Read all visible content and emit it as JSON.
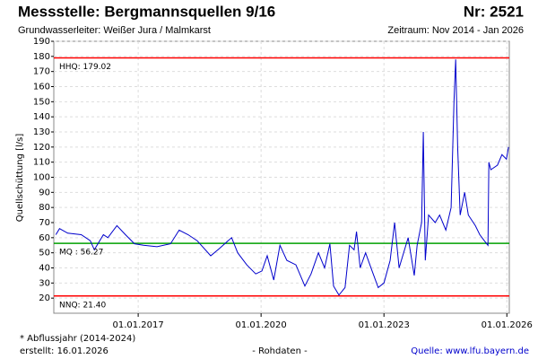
{
  "chart_data": {
    "type": "line",
    "title": "Messstelle: Bergmannsquellen 9/16",
    "number": "Nr: 2521",
    "subtitle": "Grundwasserleiter:  Weißer Jura / Malmkarst",
    "period": "Zeitraum: Nov 2014 - Jan 2026",
    "y_label": "Quellschüttung [l/s]",
    "footnote": "* Abflussjahr (2014-2024)",
    "created": "erstellt:  16.01.2026",
    "raw_note": "- Rohdaten -",
    "source": "Quelle:  www.lfu.bayern.de",
    "grid": true,
    "xlim": [
      2014.94,
      2026.06
    ],
    "ylim": [
      10,
      190
    ],
    "xticks": [
      {
        "value": 2017,
        "label": "01.01.2017"
      },
      {
        "value": 2020,
        "label": "01.01.2020"
      },
      {
        "value": 2023,
        "label": "01.01.2023"
      },
      {
        "value": 2026,
        "label": "01.01.2026"
      }
    ],
    "yticks": [
      20,
      30,
      40,
      50,
      60,
      70,
      80,
      90,
      100,
      110,
      120,
      130,
      140,
      150,
      160,
      170,
      180,
      190
    ],
    "reference_lines": [
      {
        "label": "HHQ: 179.02",
        "value": 179.02,
        "color": "#ff0000"
      },
      {
        "label": "MQ : 56.27",
        "value": 56.27,
        "color": "#00a000"
      },
      {
        "label": "NNQ: 21.40",
        "value": 21.4,
        "color": "#ff0000"
      }
    ],
    "series": [
      {
        "name": "Quellschüttung",
        "color": "#0000cc",
        "x": [
          2014.99,
          2015.08,
          2015.28,
          2015.61,
          2015.83,
          2015.93,
          2016.15,
          2016.26,
          2016.48,
          2016.69,
          2016.91,
          2017.13,
          2017.46,
          2017.79,
          2018.0,
          2018.22,
          2018.44,
          2018.77,
          2018.99,
          2019.28,
          2019.43,
          2019.65,
          2019.87,
          2020.02,
          2020.15,
          2020.31,
          2020.46,
          2020.63,
          2020.85,
          2021.07,
          2021.22,
          2021.4,
          2021.55,
          2021.68,
          2021.77,
          2021.9,
          2022.05,
          2022.16,
          2022.27,
          2022.33,
          2022.42,
          2022.55,
          2022.71,
          2022.86,
          2023.0,
          2023.15,
          2023.26,
          2023.37,
          2023.59,
          2023.65,
          2023.74,
          2023.81,
          2023.92,
          2023.96,
          2024.01,
          2024.09,
          2024.25,
          2024.36,
          2024.51,
          2024.64,
          2024.71,
          2024.75,
          2024.8,
          2024.86,
          2024.97,
          2025.06,
          2025.23,
          2025.34,
          2025.45,
          2025.54,
          2025.56,
          2025.61,
          2025.77,
          2025.88,
          2025.99,
          2026.04
        ],
        "values": [
          62,
          66,
          63,
          62,
          58,
          52,
          62,
          60,
          68,
          62,
          56,
          55,
          54,
          56,
          65,
          62,
          58,
          48,
          53,
          60,
          50,
          42,
          36,
          38,
          48,
          32,
          55,
          45,
          42,
          28,
          36,
          50,
          40,
          56,
          28,
          22,
          27,
          55,
          52,
          64,
          40,
          50,
          38,
          27,
          30,
          45,
          70,
          40,
          60,
          50,
          35,
          55,
          70,
          130,
          45,
          75,
          70,
          75,
          65,
          80,
          150,
          178,
          120,
          75,
          90,
          75,
          68,
          62,
          58,
          55,
          110,
          105,
          108,
          115,
          112,
          120
        ]
      }
    ]
  }
}
